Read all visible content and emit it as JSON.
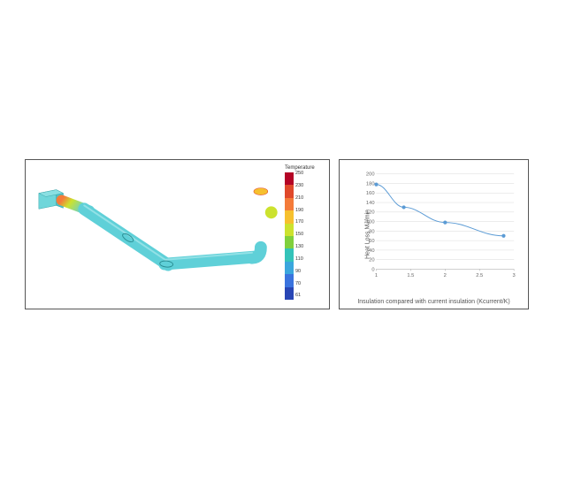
{
  "simulation": {
    "legend_title": "Temperature",
    "legend_max_label": "250",
    "legend_min_label": "61",
    "legend_ticks": [
      "250",
      "230",
      "210",
      "190",
      "170",
      "150",
      "130",
      "110",
      "90",
      "70",
      "61"
    ],
    "legend_colors": [
      "#b40426",
      "#e0492b",
      "#f47b3a",
      "#f6c02e",
      "#cce22e",
      "#80d03c",
      "#34c3b9",
      "#3aa6dd",
      "#3a73de",
      "#2846b5"
    ],
    "pipe_main_color": "#5fd0d8",
    "pipe_hot_end_color": "#f47b3a",
    "pipe_mid_color": "#cce22e",
    "background": "#ffffff"
  },
  "chart": {
    "type": "line",
    "xlabel": "Insulation compared with current insulation (Kcurrent/K)",
    "ylabel": "Heat Loss MJ/min",
    "xlim": [
      1,
      3
    ],
    "ylim": [
      0,
      200
    ],
    "xticks": [
      1,
      1.5,
      2,
      2.5,
      3
    ],
    "yticks": [
      0,
      20,
      40,
      60,
      80,
      100,
      120,
      140,
      160,
      180,
      200
    ],
    "points": [
      {
        "x": 1.0,
        "y": 178
      },
      {
        "x": 1.4,
        "y": 130
      },
      {
        "x": 2.0,
        "y": 98
      },
      {
        "x": 2.85,
        "y": 70
      }
    ],
    "line_color": "#5b9bd5",
    "marker_color": "#5b9bd5",
    "marker_size": 2.2,
    "line_width": 1,
    "grid_color": "#d9d9d9",
    "background": "#ffffff",
    "label_fontsize": 7,
    "tick_fontsize": 6
  }
}
